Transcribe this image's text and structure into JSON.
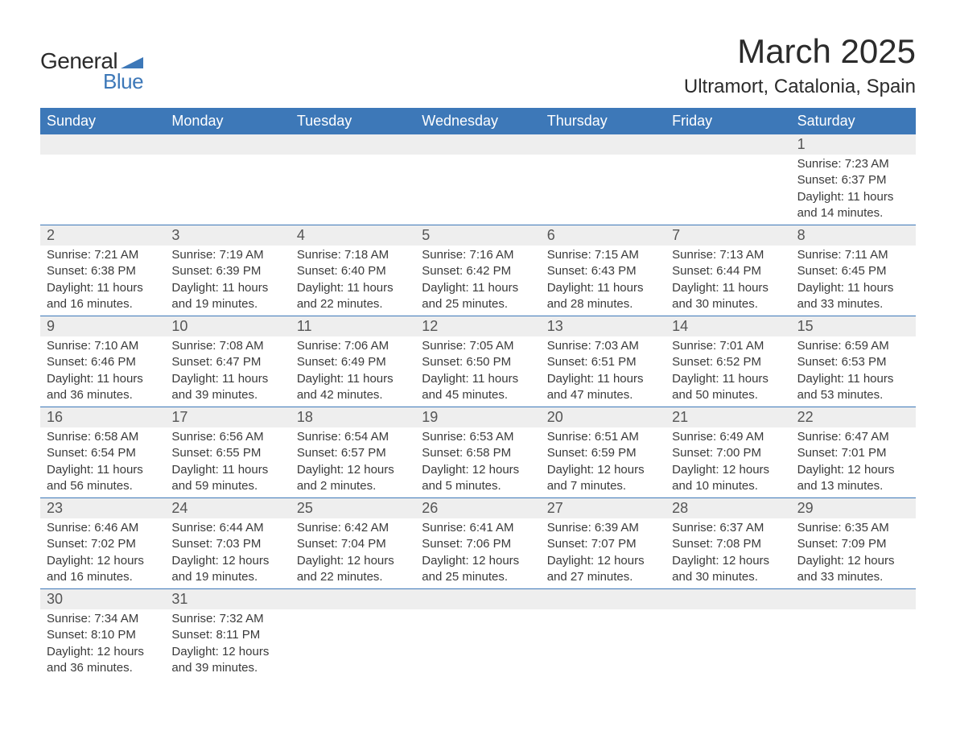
{
  "logo": {
    "text_general": "General",
    "text_blue": "Blue",
    "triangle_color": "#3d78b8"
  },
  "title": {
    "month": "March 2025",
    "location": "Ultramort, Catalonia, Spain",
    "month_fontsize": 42,
    "location_fontsize": 24,
    "text_color": "#2b2b2b"
  },
  "colors": {
    "header_bg": "#3d78b8",
    "header_text": "#ffffff",
    "daynum_bg": "#eeeeee",
    "daynum_text": "#555555",
    "body_text": "#3a3a3a",
    "week_border": "#3d78b8",
    "background": "#ffffff"
  },
  "typography": {
    "header_fontsize": 18,
    "daynum_fontsize": 18,
    "content_fontsize": 15,
    "font_family": "Arial"
  },
  "day_headers": [
    "Sunday",
    "Monday",
    "Tuesday",
    "Wednesday",
    "Thursday",
    "Friday",
    "Saturday"
  ],
  "weeks": [
    {
      "days": [
        {
          "n": "",
          "sunrise": "",
          "sunset": "",
          "daylight": ""
        },
        {
          "n": "",
          "sunrise": "",
          "sunset": "",
          "daylight": ""
        },
        {
          "n": "",
          "sunrise": "",
          "sunset": "",
          "daylight": ""
        },
        {
          "n": "",
          "sunrise": "",
          "sunset": "",
          "daylight": ""
        },
        {
          "n": "",
          "sunrise": "",
          "sunset": "",
          "daylight": ""
        },
        {
          "n": "",
          "sunrise": "",
          "sunset": "",
          "daylight": ""
        },
        {
          "n": "1",
          "sunrise": "Sunrise: 7:23 AM",
          "sunset": "Sunset: 6:37 PM",
          "daylight": "Daylight: 11 hours and 14 minutes."
        }
      ]
    },
    {
      "days": [
        {
          "n": "2",
          "sunrise": "Sunrise: 7:21 AM",
          "sunset": "Sunset: 6:38 PM",
          "daylight": "Daylight: 11 hours and 16 minutes."
        },
        {
          "n": "3",
          "sunrise": "Sunrise: 7:19 AM",
          "sunset": "Sunset: 6:39 PM",
          "daylight": "Daylight: 11 hours and 19 minutes."
        },
        {
          "n": "4",
          "sunrise": "Sunrise: 7:18 AM",
          "sunset": "Sunset: 6:40 PM",
          "daylight": "Daylight: 11 hours and 22 minutes."
        },
        {
          "n": "5",
          "sunrise": "Sunrise: 7:16 AM",
          "sunset": "Sunset: 6:42 PM",
          "daylight": "Daylight: 11 hours and 25 minutes."
        },
        {
          "n": "6",
          "sunrise": "Sunrise: 7:15 AM",
          "sunset": "Sunset: 6:43 PM",
          "daylight": "Daylight: 11 hours and 28 minutes."
        },
        {
          "n": "7",
          "sunrise": "Sunrise: 7:13 AM",
          "sunset": "Sunset: 6:44 PM",
          "daylight": "Daylight: 11 hours and 30 minutes."
        },
        {
          "n": "8",
          "sunrise": "Sunrise: 7:11 AM",
          "sunset": "Sunset: 6:45 PM",
          "daylight": "Daylight: 11 hours and 33 minutes."
        }
      ]
    },
    {
      "days": [
        {
          "n": "9",
          "sunrise": "Sunrise: 7:10 AM",
          "sunset": "Sunset: 6:46 PM",
          "daylight": "Daylight: 11 hours and 36 minutes."
        },
        {
          "n": "10",
          "sunrise": "Sunrise: 7:08 AM",
          "sunset": "Sunset: 6:47 PM",
          "daylight": "Daylight: 11 hours and 39 minutes."
        },
        {
          "n": "11",
          "sunrise": "Sunrise: 7:06 AM",
          "sunset": "Sunset: 6:49 PM",
          "daylight": "Daylight: 11 hours and 42 minutes."
        },
        {
          "n": "12",
          "sunrise": "Sunrise: 7:05 AM",
          "sunset": "Sunset: 6:50 PM",
          "daylight": "Daylight: 11 hours and 45 minutes."
        },
        {
          "n": "13",
          "sunrise": "Sunrise: 7:03 AM",
          "sunset": "Sunset: 6:51 PM",
          "daylight": "Daylight: 11 hours and 47 minutes."
        },
        {
          "n": "14",
          "sunrise": "Sunrise: 7:01 AM",
          "sunset": "Sunset: 6:52 PM",
          "daylight": "Daylight: 11 hours and 50 minutes."
        },
        {
          "n": "15",
          "sunrise": "Sunrise: 6:59 AM",
          "sunset": "Sunset: 6:53 PM",
          "daylight": "Daylight: 11 hours and 53 minutes."
        }
      ]
    },
    {
      "days": [
        {
          "n": "16",
          "sunrise": "Sunrise: 6:58 AM",
          "sunset": "Sunset: 6:54 PM",
          "daylight": "Daylight: 11 hours and 56 minutes."
        },
        {
          "n": "17",
          "sunrise": "Sunrise: 6:56 AM",
          "sunset": "Sunset: 6:55 PM",
          "daylight": "Daylight: 11 hours and 59 minutes."
        },
        {
          "n": "18",
          "sunrise": "Sunrise: 6:54 AM",
          "sunset": "Sunset: 6:57 PM",
          "daylight": "Daylight: 12 hours and 2 minutes."
        },
        {
          "n": "19",
          "sunrise": "Sunrise: 6:53 AM",
          "sunset": "Sunset: 6:58 PM",
          "daylight": "Daylight: 12 hours and 5 minutes."
        },
        {
          "n": "20",
          "sunrise": "Sunrise: 6:51 AM",
          "sunset": "Sunset: 6:59 PM",
          "daylight": "Daylight: 12 hours and 7 minutes."
        },
        {
          "n": "21",
          "sunrise": "Sunrise: 6:49 AM",
          "sunset": "Sunset: 7:00 PM",
          "daylight": "Daylight: 12 hours and 10 minutes."
        },
        {
          "n": "22",
          "sunrise": "Sunrise: 6:47 AM",
          "sunset": "Sunset: 7:01 PM",
          "daylight": "Daylight: 12 hours and 13 minutes."
        }
      ]
    },
    {
      "days": [
        {
          "n": "23",
          "sunrise": "Sunrise: 6:46 AM",
          "sunset": "Sunset: 7:02 PM",
          "daylight": "Daylight: 12 hours and 16 minutes."
        },
        {
          "n": "24",
          "sunrise": "Sunrise: 6:44 AM",
          "sunset": "Sunset: 7:03 PM",
          "daylight": "Daylight: 12 hours and 19 minutes."
        },
        {
          "n": "25",
          "sunrise": "Sunrise: 6:42 AM",
          "sunset": "Sunset: 7:04 PM",
          "daylight": "Daylight: 12 hours and 22 minutes."
        },
        {
          "n": "26",
          "sunrise": "Sunrise: 6:41 AM",
          "sunset": "Sunset: 7:06 PM",
          "daylight": "Daylight: 12 hours and 25 minutes."
        },
        {
          "n": "27",
          "sunrise": "Sunrise: 6:39 AM",
          "sunset": "Sunset: 7:07 PM",
          "daylight": "Daylight: 12 hours and 27 minutes."
        },
        {
          "n": "28",
          "sunrise": "Sunrise: 6:37 AM",
          "sunset": "Sunset: 7:08 PM",
          "daylight": "Daylight: 12 hours and 30 minutes."
        },
        {
          "n": "29",
          "sunrise": "Sunrise: 6:35 AM",
          "sunset": "Sunset: 7:09 PM",
          "daylight": "Daylight: 12 hours and 33 minutes."
        }
      ]
    },
    {
      "days": [
        {
          "n": "30",
          "sunrise": "Sunrise: 7:34 AM",
          "sunset": "Sunset: 8:10 PM",
          "daylight": "Daylight: 12 hours and 36 minutes."
        },
        {
          "n": "31",
          "sunrise": "Sunrise: 7:32 AM",
          "sunset": "Sunset: 8:11 PM",
          "daylight": "Daylight: 12 hours and 39 minutes."
        },
        {
          "n": "",
          "sunrise": "",
          "sunset": "",
          "daylight": ""
        },
        {
          "n": "",
          "sunrise": "",
          "sunset": "",
          "daylight": ""
        },
        {
          "n": "",
          "sunrise": "",
          "sunset": "",
          "daylight": ""
        },
        {
          "n": "",
          "sunrise": "",
          "sunset": "",
          "daylight": ""
        },
        {
          "n": "",
          "sunrise": "",
          "sunset": "",
          "daylight": ""
        }
      ]
    }
  ]
}
